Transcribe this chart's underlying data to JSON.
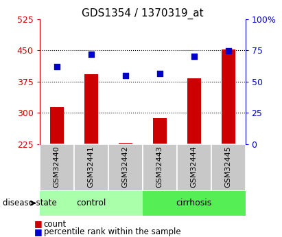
{
  "title": "GDS1354 / 1370319_at",
  "samples": [
    "GSM32440",
    "GSM32441",
    "GSM32442",
    "GSM32443",
    "GSM32444",
    "GSM32445"
  ],
  "bar_values": [
    313,
    393,
    228,
    288,
    383,
    452
  ],
  "bar_baseline": 225,
  "blue_values_left": [
    410,
    440,
    390,
    395,
    435,
    449
  ],
  "left_ylim": [
    225,
    525
  ],
  "left_yticks": [
    225,
    300,
    375,
    450,
    525
  ],
  "right_ylim": [
    0,
    100
  ],
  "right_yticks": [
    0,
    25,
    50,
    75,
    100
  ],
  "right_yticklabels": [
    "0",
    "25",
    "50",
    "75",
    "100%"
  ],
  "bar_color": "#cc0000",
  "blue_color": "#0000cc",
  "grid_lines": [
    300,
    375,
    450
  ],
  "control_label": "control",
  "cirrhosis_label": "cirrhosis",
  "disease_state_label": "disease state",
  "legend_count": "count",
  "legend_percentile": "percentile rank within the sample",
  "left_axis_color": "#cc0000",
  "right_axis_color": "#0000cc",
  "title_fontsize": 11,
  "tick_fontsize": 9,
  "sample_fontsize": 8,
  "control_color": "#aaffaa",
  "cirrhosis_color": "#55ee55",
  "cell_color": "#c8c8c8",
  "n_control": 3,
  "n_cirrhosis": 3
}
